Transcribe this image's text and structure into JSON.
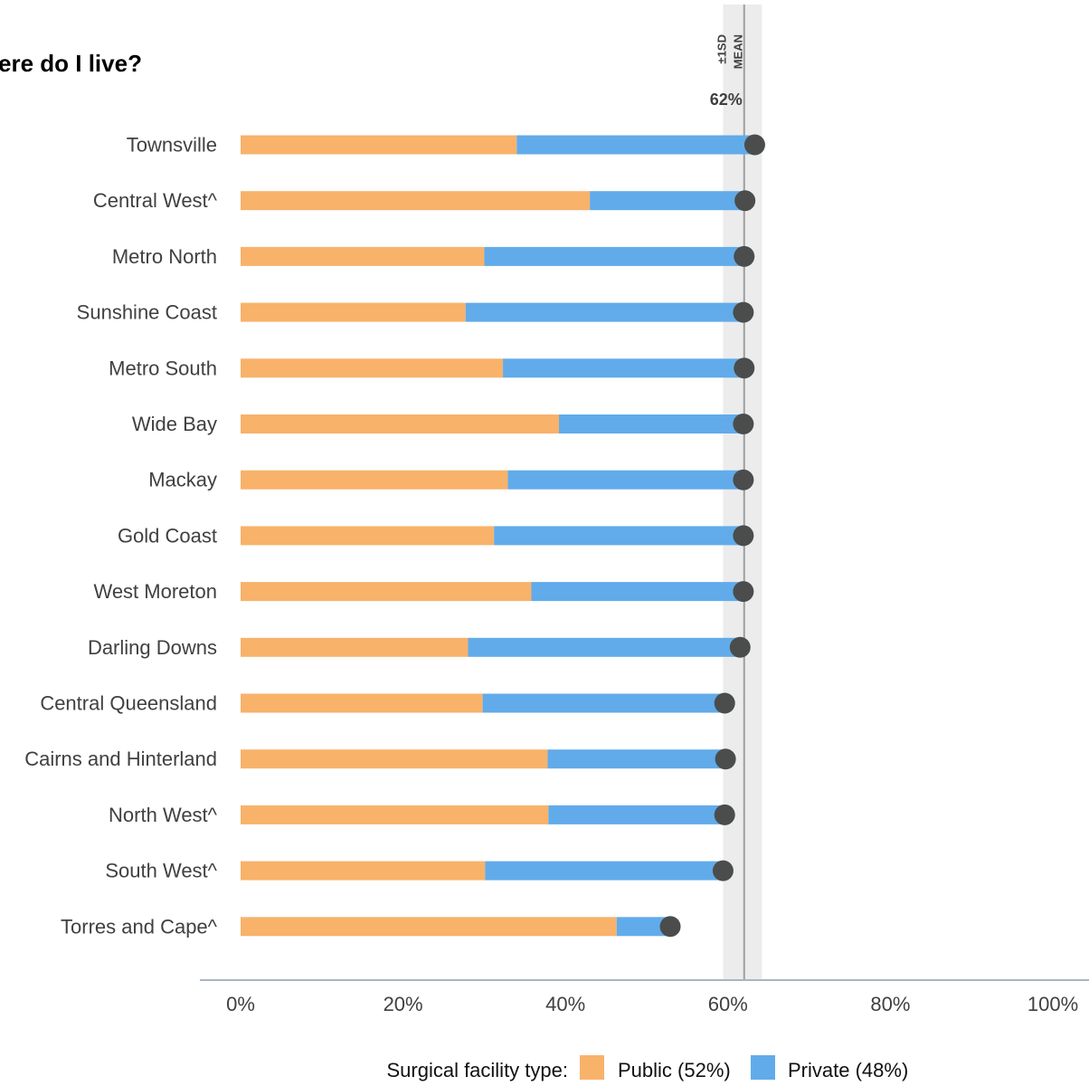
{
  "title": "ere do I live?",
  "chart_data": {
    "type": "bar",
    "stacked": true,
    "orientation": "horizontal",
    "categories": [
      "Townsville",
      "Central West^",
      "Metro North",
      "Sunshine Coast",
      "Metro South",
      "Wide Bay",
      "Mackay",
      "Gold Coast",
      "West Moreton",
      "Darling Downs",
      "Central Queensland",
      "Cairns and Hinterland",
      "North West^",
      "South West^",
      "Torres and Cape^"
    ],
    "series": [
      {
        "name": "Public (52%)",
        "color": "#F8B26A",
        "values": [
          34.0,
          43.0,
          30.0,
          27.7,
          32.3,
          39.2,
          32.9,
          31.2,
          35.8,
          28.0,
          29.8,
          37.8,
          37.9,
          30.1,
          46.3
        ]
      },
      {
        "name": "Private (48%)",
        "color": "#61ABEA",
        "values": [
          29.3,
          19.1,
          32.0,
          34.2,
          29.7,
          22.7,
          29.0,
          30.7,
          26.1,
          33.5,
          29.8,
          21.9,
          21.7,
          29.3,
          6.6
        ]
      }
    ],
    "totals": [
      63.3,
      62.1,
      62.0,
      61.9,
      62.0,
      61.9,
      61.9,
      61.9,
      61.9,
      61.5,
      59.6,
      59.7,
      59.6,
      59.4,
      52.9
    ],
    "mean": 62,
    "mean_label": "62%",
    "sd_band": [
      59.4,
      64.2
    ],
    "mean_line_label": "MEAN",
    "sd_band_label": "±1SD",
    "xlim": [
      0,
      100
    ],
    "x_ticks": [
      0,
      20,
      40,
      60,
      80,
      100
    ],
    "x_tick_labels": [
      "0%",
      "20%",
      "40%",
      "60%",
      "80%",
      "100%"
    ],
    "legend_title": "Surgical facility type:",
    "legend_position": "bottom",
    "grid": false,
    "colors": {
      "marker": "#4A4D4C",
      "band": "#ECECEC",
      "mean_line": "#9E9E9E",
      "axis": "#A9B5C2",
      "label_text": "#404040"
    }
  }
}
